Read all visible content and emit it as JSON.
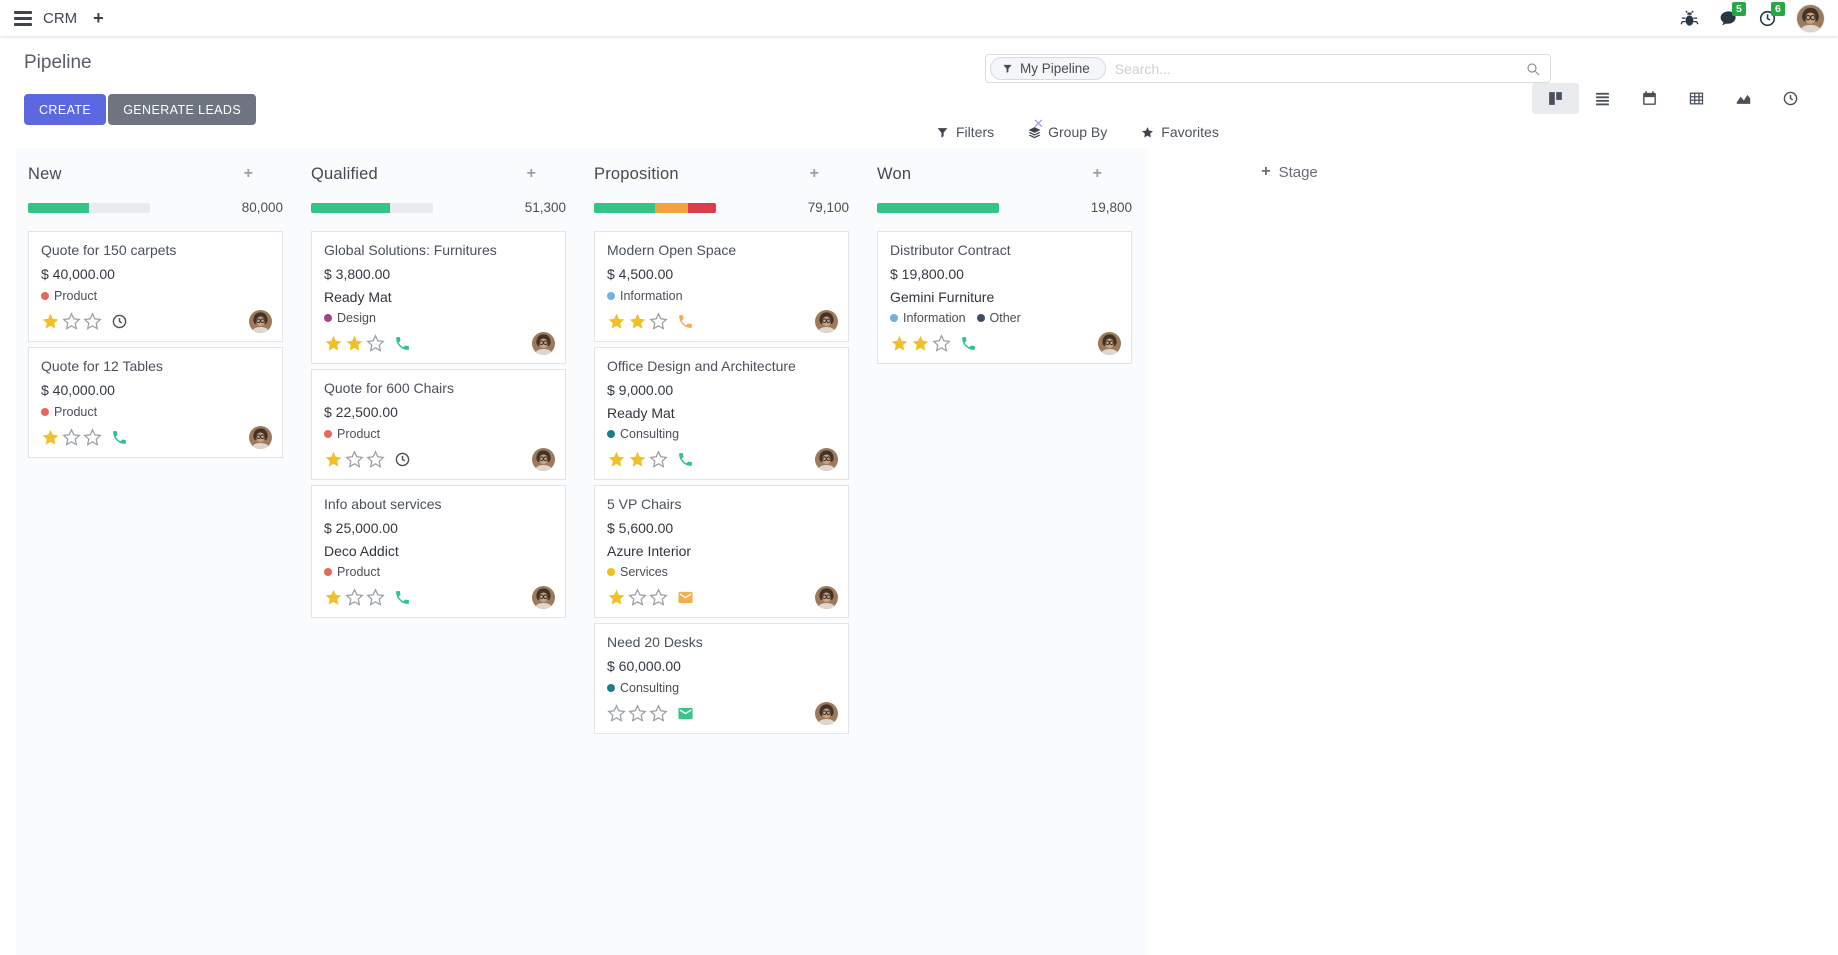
{
  "navbar": {
    "app_name": "CRM",
    "messages_badge": "5",
    "activities_badge": "6"
  },
  "control_panel": {
    "title": "Pipeline",
    "buttons": {
      "create": "CREATE",
      "generate_leads": "GENERATE LEADS"
    },
    "search": {
      "facet_label": "My Pipeline",
      "placeholder": "Search..."
    },
    "menus": {
      "filters": "Filters",
      "group_by": "Group By",
      "favorites": "Favorites"
    },
    "view_switcher": [
      "kanban",
      "list",
      "calendar",
      "pivot",
      "graph",
      "activity"
    ],
    "active_view": "kanban"
  },
  "board": {
    "add_stage_label": "Stage",
    "columns": [
      {
        "name": "New",
        "total": "80,000",
        "progress": [
          {
            "color": "#32c587",
            "pct": 50
          },
          {
            "color": "#e9ecef",
            "pct": 50
          }
        ],
        "cards": [
          {
            "title": "Quote for 150 carpets",
            "amount": "$ 40,000.00",
            "tags": [
              {
                "label": "Product",
                "color": "#e8685c"
              }
            ],
            "stars": 1,
            "activity": {
              "icon": "clock-icon",
              "color": "#495057"
            }
          },
          {
            "title": "Quote for 12 Tables",
            "amount": "$ 40,000.00",
            "tags": [
              {
                "label": "Product",
                "color": "#e8685c"
              }
            ],
            "stars": 1,
            "activity": {
              "icon": "phone-icon",
              "color": "#2ec28c"
            }
          }
        ]
      },
      {
        "name": "Qualified",
        "total": "51,300",
        "progress": [
          {
            "color": "#32c587",
            "pct": 65
          },
          {
            "color": "#e9ecef",
            "pct": 35
          }
        ],
        "cards": [
          {
            "title": "Global Solutions: Furnitures",
            "amount": "$ 3,800.00",
            "company": "Ready Mat",
            "tags": [
              {
                "label": "Design",
                "color": "#a0448c"
              }
            ],
            "stars": 2,
            "activity": {
              "icon": "phone-icon",
              "color": "#2ec28c"
            }
          },
          {
            "title": "Quote for 600 Chairs",
            "amount": "$ 22,500.00",
            "tags": [
              {
                "label": "Product",
                "color": "#e8685c"
              }
            ],
            "stars": 1,
            "activity": {
              "icon": "clock-icon",
              "color": "#495057"
            }
          },
          {
            "title": "Info about services",
            "amount": "$ 25,000.00",
            "company": "Deco Addict",
            "tags": [
              {
                "label": "Product",
                "color": "#e8685c"
              }
            ],
            "stars": 1,
            "activity": {
              "icon": "phone-icon",
              "color": "#2ec28c"
            }
          }
        ]
      },
      {
        "name": "Proposition",
        "total": "79,100",
        "progress": [
          {
            "color": "#32c587",
            "pct": 50
          },
          {
            "color": "#f2a33c",
            "pct": 27
          },
          {
            "color": "#db3b4b",
            "pct": 23
          }
        ],
        "cards": [
          {
            "title": "Modern Open Space",
            "amount": "$ 4,500.00",
            "tags": [
              {
                "label": "Information",
                "color": "#6db3e2"
              }
            ],
            "stars": 2,
            "activity": {
              "icon": "phone-icon",
              "color": "#f2b04a"
            }
          },
          {
            "title": "Office Design and Architecture",
            "amount": "$ 9,000.00",
            "company": "Ready Mat",
            "tags": [
              {
                "label": "Consulting",
                "color": "#1e7e8d"
              }
            ],
            "stars": 2,
            "activity": {
              "icon": "phone-icon",
              "color": "#2ec28c"
            }
          },
          {
            "title": "5 VP Chairs",
            "amount": "$ 5,600.00",
            "company": "Azure Interior",
            "tags": [
              {
                "label": "Services",
                "color": "#efc11b"
              }
            ],
            "stars": 1,
            "activity": {
              "icon": "envelope-icon",
              "color": "#f3b04c"
            }
          },
          {
            "title": "Need 20 Desks",
            "amount": "$ 60,000.00",
            "tags": [
              {
                "label": "Consulting",
                "color": "#1e7e8d"
              }
            ],
            "stars": 0,
            "activity": {
              "icon": "envelope-icon",
              "color": "#3ac489"
            }
          }
        ]
      },
      {
        "name": "Won",
        "total": "19,800",
        "progress": [
          {
            "color": "#32c587",
            "pct": 100
          }
        ],
        "cards": [
          {
            "title": "Distributor Contract",
            "amount": "$ 19,800.00",
            "company": "Gemini Furniture",
            "tags": [
              {
                "label": "Information",
                "color": "#6db3e2"
              },
              {
                "label": "Other",
                "color": "#3e4f62"
              }
            ],
            "stars": 2,
            "activity": {
              "icon": "phone-icon",
              "color": "#2ec28c"
            }
          }
        ]
      }
    ]
  },
  "colors": {
    "primary": "#5b68e0",
    "secondary": "#6e7580",
    "badge_green": "#28a745",
    "star_gold": "#f0c02b",
    "star_empty_stroke": "#9aa0a6",
    "progress_success": "#32c587",
    "progress_warning": "#f2a33c",
    "progress_danger": "#db3b4b"
  }
}
